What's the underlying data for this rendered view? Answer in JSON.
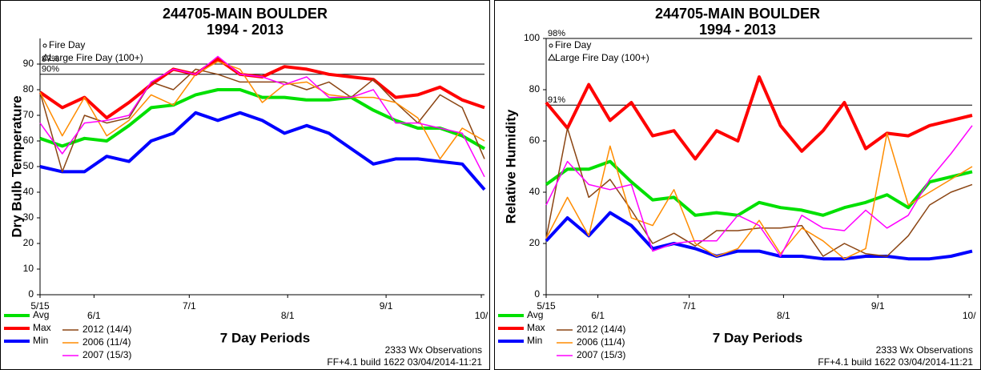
{
  "chart_data": [
    {
      "type": "line",
      "title": "244705-MAIN BOULDER",
      "subtitle": "1994 - 2013",
      "x_label": "7 Day Periods",
      "y_label": "Dry Bulb Temperature",
      "notes": [
        "Fire Day",
        "Large Fire Day (100+)"
      ],
      "footnotes": [
        "2333 Wx Observations",
        "FF+4.1 build 1622 03/04/2014-11:21"
      ],
      "x": [
        0,
        7,
        14,
        21,
        28,
        35,
        42,
        49,
        56,
        63,
        70,
        77,
        84,
        91,
        98,
        105,
        112,
        119,
        126,
        133,
        140
      ],
      "xlim": [
        0,
        140
      ],
      "xticks": [
        {
          "value": 0,
          "label": "5/15"
        },
        {
          "value": 17,
          "label": "6/1"
        },
        {
          "value": 47,
          "label": "7/1"
        },
        {
          "value": 78,
          "label": "8/1"
        },
        {
          "value": 109,
          "label": "9/1"
        },
        {
          "value": 139,
          "label": "10/"
        }
      ],
      "ylim": [
        0,
        100
      ],
      "yticks": [
        0,
        10,
        20,
        30,
        40,
        50,
        60,
        70,
        80,
        90
      ],
      "percentile_lines": [
        {
          "value": 90,
          "label": "97%"
        },
        {
          "value": 86,
          "label": "90%"
        }
      ],
      "series": [
        {
          "name": "Avg",
          "color": "#00e000",
          "width": 4,
          "values": [
            61,
            58,
            61,
            60,
            66,
            73,
            74,
            78,
            80,
            80,
            77,
            77,
            76,
            76,
            77,
            72,
            68,
            65,
            65,
            62,
            57
          ]
        },
        {
          "name": "Max",
          "color": "#ff0000",
          "width": 4,
          "values": [
            79,
            73,
            77,
            69,
            75,
            82,
            88,
            86,
            92,
            86,
            85,
            89,
            88,
            86,
            85,
            84,
            77,
            78,
            81,
            76,
            73
          ]
        },
        {
          "name": "Min",
          "color": "#0000ff",
          "width": 4,
          "values": [
            50,
            48,
            48,
            54,
            52,
            60,
            63,
            71,
            68,
            71,
            68,
            63,
            66,
            63,
            57,
            51,
            53,
            53,
            52,
            51,
            41
          ]
        },
        {
          "name": "2012 (14/4)",
          "color": "#8b4513",
          "width": 1.5,
          "values": [
            79,
            48,
            70,
            67,
            69,
            83,
            80,
            88,
            86,
            83,
            83,
            83,
            80,
            83,
            77,
            84,
            75,
            67,
            78,
            73,
            53
          ]
        },
        {
          "name": "2006 (11/4)",
          "color": "#ff8c00",
          "width": 1.5,
          "values": [
            79,
            62,
            77,
            62,
            68,
            78,
            74,
            86,
            91,
            88,
            75,
            82,
            83,
            78,
            77,
            77,
            75,
            69,
            53,
            65,
            60
          ]
        },
        {
          "name": "2007 (15/3)",
          "color": "#ff00ff",
          "width": 1.5,
          "values": [
            67,
            55,
            67,
            68,
            70,
            83,
            88,
            86,
            93,
            86,
            85,
            82,
            85,
            77,
            77,
            80,
            67,
            67,
            65,
            63,
            46
          ]
        }
      ]
    },
    {
      "type": "line",
      "title": "244705-MAIN BOULDER",
      "subtitle": "1994 - 2013",
      "x_label": "7 Day Periods",
      "y_label": "Relative Humidity",
      "notes": [
        "Fire Day",
        "Large Fire Day (100+)"
      ],
      "footnotes": [
        "2333 Wx Observations",
        "FF+4.1 build 1622 03/04/2014-11:21"
      ],
      "x": [
        0,
        7,
        14,
        21,
        28,
        35,
        42,
        49,
        56,
        63,
        70,
        77,
        84,
        91,
        98,
        105,
        112,
        119,
        126,
        133,
        140
      ],
      "xlim": [
        0,
        140
      ],
      "xticks": [
        {
          "value": 0,
          "label": "5/15"
        },
        {
          "value": 17,
          "label": "6/1"
        },
        {
          "value": 47,
          "label": "7/1"
        },
        {
          "value": 78,
          "label": "8/1"
        },
        {
          "value": 109,
          "label": "9/1"
        },
        {
          "value": 139,
          "label": "10/"
        }
      ],
      "ylim": [
        0,
        100
      ],
      "yticks": [
        0,
        20,
        40,
        60,
        80,
        100
      ],
      "percentile_lines": [
        {
          "value": 100,
          "label": "98%"
        },
        {
          "value": 74,
          "label": "91%"
        }
      ],
      "series": [
        {
          "name": "Avg",
          "color": "#00e000",
          "width": 4,
          "values": [
            43,
            49,
            49,
            52,
            44,
            37,
            38,
            31,
            32,
            31,
            36,
            34,
            33,
            31,
            34,
            36,
            39,
            34,
            44,
            46,
            48
          ]
        },
        {
          "name": "Max",
          "color": "#ff0000",
          "width": 4,
          "values": [
            75,
            65,
            82,
            68,
            75,
            62,
            64,
            53,
            64,
            60,
            85,
            66,
            56,
            64,
            75,
            57,
            63,
            62,
            66,
            68,
            70
          ]
        },
        {
          "name": "Min",
          "color": "#0000ff",
          "width": 4,
          "values": [
            21,
            30,
            23,
            32,
            27,
            18,
            20,
            18,
            15,
            17,
            17,
            15,
            15,
            14,
            14,
            15,
            15,
            14,
            14,
            15,
            17
          ]
        },
        {
          "name": "2012 (14/4)",
          "color": "#8b4513",
          "width": 1.5,
          "values": [
            22,
            65,
            38,
            45,
            33,
            20,
            24,
            19,
            25,
            25,
            26,
            26,
            27,
            15,
            20,
            16,
            15,
            23,
            35,
            40,
            43
          ]
        },
        {
          "name": "2006 (11/4)",
          "color": "#ff8c00",
          "width": 1.5,
          "values": [
            22,
            38,
            23,
            58,
            30,
            27,
            41,
            20,
            15,
            18,
            29,
            16,
            26,
            21,
            14,
            18,
            63,
            35,
            40,
            45,
            50
          ]
        },
        {
          "name": "2007 (15/3)",
          "color": "#ff00ff",
          "width": 1.5,
          "values": [
            35,
            52,
            43,
            41,
            43,
            17,
            20,
            21,
            21,
            31,
            27,
            15,
            31,
            26,
            25,
            33,
            26,
            31,
            45,
            55,
            66
          ]
        }
      ]
    }
  ]
}
